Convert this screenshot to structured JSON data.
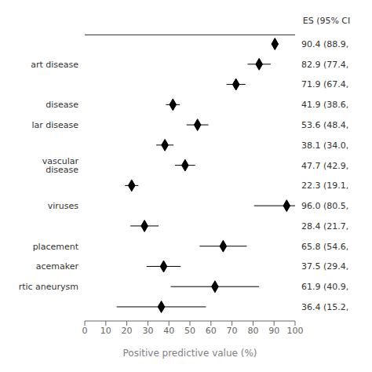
{
  "chart_data": {
    "type": "forest",
    "title": "ES (95% CI",
    "xlabel": "Positive predictive value (%)",
    "categories": [
      null,
      "art disease",
      null,
      "disease",
      "lar disease",
      null,
      "vascular disease",
      null,
      "viruses",
      null,
      "placement",
      "acemaker",
      "rtic aneurysm",
      null
    ],
    "values": [
      90.4,
      82.9,
      71.9,
      41.9,
      53.6,
      38.1,
      47.7,
      22.3,
      96.0,
      28.4,
      65.8,
      37.5,
      61.9,
      36.4
    ],
    "lo": [
      88.9,
      77.4,
      67.4,
      38.6,
      48.4,
      34.0,
      42.9,
      19.1,
      80.5,
      21.7,
      54.6,
      29.4,
      40.9,
      15.2
    ],
    "hi": [
      92.0,
      88.4,
      76.4,
      45.2,
      58.8,
      42.2,
      52.5,
      25.5,
      100.0,
      35.1,
      77.0,
      45.6,
      82.9,
      57.6
    ],
    "value_labels": [
      "90.4 (88.9,",
      "82.9 (77.4,",
      "71.9 (67.4,",
      "41.9 (38.6,",
      "53.6 (48.4,",
      "38.1 (34.0,",
      "47.7 (42.9,",
      "22.3 (19.1,",
      "96.0 (80.5,",
      "28.4 (21.7,",
      "65.8 (54.6,",
      "37.5 (29.4,",
      "61.9 (40.9,",
      "36.4 (15.2,"
    ],
    "xlim": [
      0,
      100
    ],
    "xticks": [
      0,
      10,
      20,
      30,
      40,
      50,
      60,
      70,
      80,
      90,
      100
    ],
    "color": "black"
  }
}
